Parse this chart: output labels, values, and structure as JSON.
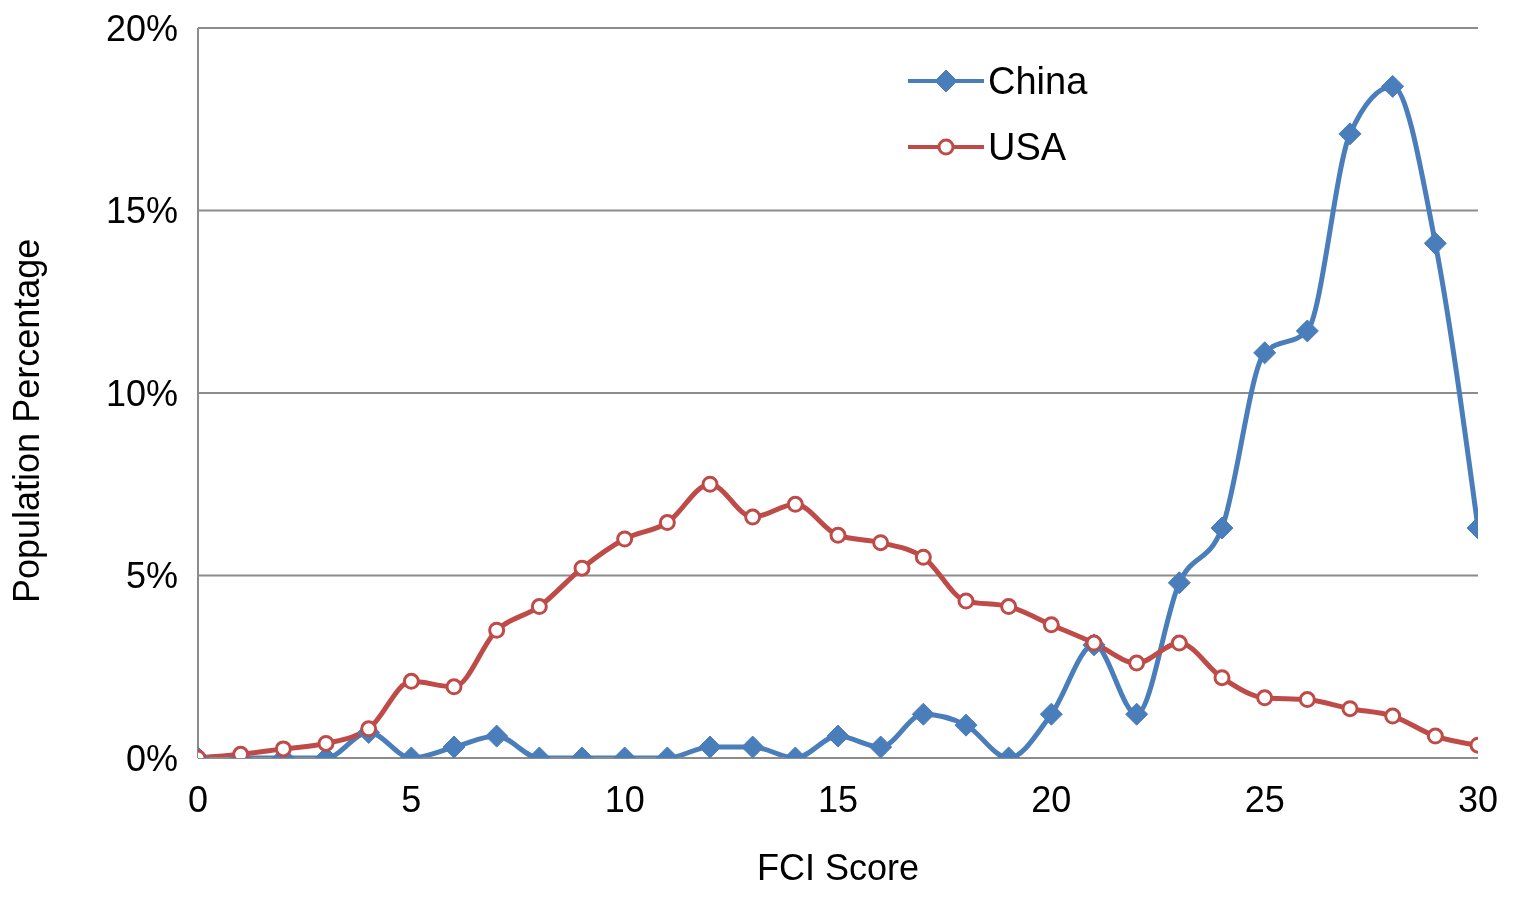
{
  "chart_data": {
    "type": "line",
    "xlabel": "FCI Score",
    "ylabel": "Population Percentage",
    "x": [
      0,
      1,
      2,
      3,
      4,
      5,
      6,
      7,
      8,
      9,
      10,
      11,
      12,
      13,
      14,
      15,
      16,
      17,
      18,
      19,
      20,
      21,
      22,
      23,
      24,
      25,
      26,
      27,
      28,
      29,
      30
    ],
    "series": [
      {
        "name": "China",
        "color": "#4a7ebb",
        "marker": "diamond",
        "values": [
          0,
          0,
          0,
          0,
          0.7,
          0,
          0.3,
          0.6,
          0,
          0,
          0,
          0,
          0.3,
          0.3,
          0,
          0.6,
          0.3,
          1.2,
          0.9,
          0,
          1.2,
          3.1,
          1.2,
          4.8,
          6.3,
          11.1,
          11.7,
          17.1,
          18.4,
          14.1,
          6.3
        ]
      },
      {
        "name": "USA",
        "color": "#be4b48",
        "marker": "circle",
        "values": [
          0,
          0.1,
          0.25,
          0.4,
          0.8,
          2.1,
          1.95,
          3.5,
          4.15,
          5.2,
          6.0,
          6.45,
          7.5,
          6.6,
          6.95,
          6.1,
          5.9,
          5.5,
          4.3,
          4.15,
          3.65,
          3.15,
          2.6,
          3.15,
          2.2,
          1.65,
          1.6,
          1.35,
          1.15,
          0.6,
          0.35
        ]
      }
    ],
    "xlim": [
      0,
      30
    ],
    "xticks": [
      0,
      5,
      10,
      15,
      20,
      25,
      30
    ],
    "ylim": [
      0,
      20
    ],
    "yticks": [
      {
        "value": 0,
        "label": "0%"
      },
      {
        "value": 5,
        "label": "5%"
      },
      {
        "value": 10,
        "label": "10%"
      },
      {
        "value": 15,
        "label": "15%"
      },
      {
        "value": 20,
        "label": "20%"
      }
    ],
    "grid": "y",
    "legend": "top right",
    "line_style": "solid"
  }
}
